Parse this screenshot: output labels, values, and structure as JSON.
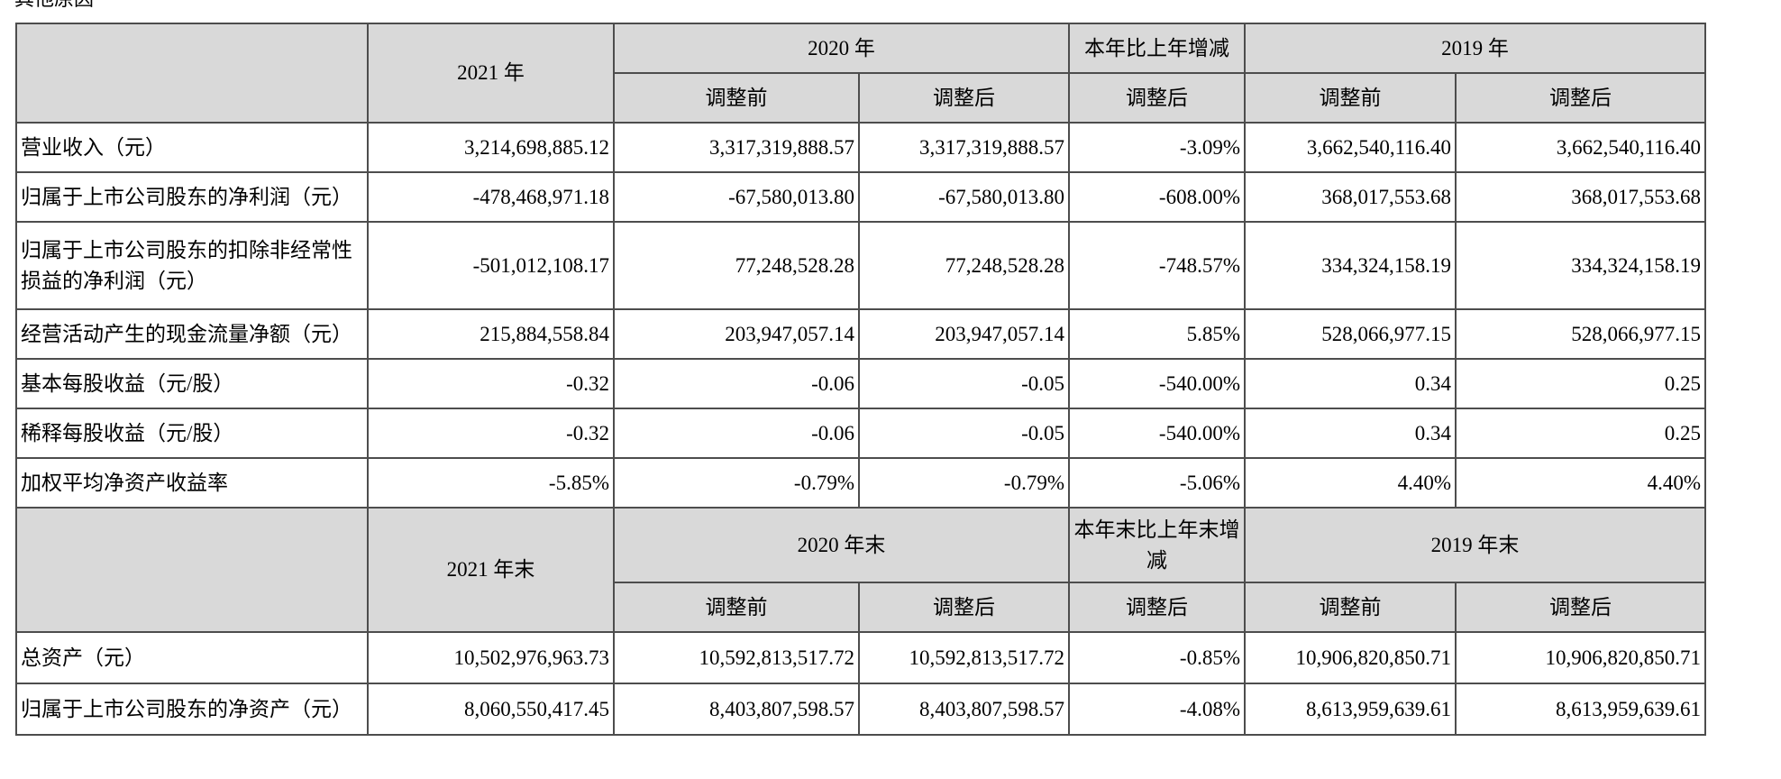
{
  "cut_heading": "其他原因",
  "top_header": {
    "col_2021": "2021 年",
    "col_2020": "2020 年",
    "col_change": "本年比上年增减",
    "col_2019": "2019 年",
    "before_adj": "调整前",
    "after_adj": "调整后"
  },
  "rows": [
    {
      "label": "营业收入（元）",
      "v2021": "3,214,698,885.12",
      "v2020_before": "3,317,319,888.57",
      "v2020_after": "3,317,319,888.57",
      "change": "-3.09%",
      "v2019_before": "3,662,540,116.40",
      "v2019_after": "3,662,540,116.40"
    },
    {
      "label": "归属于上市公司股东的净利润（元）",
      "v2021": "-478,468,971.18",
      "v2020_before": "-67,580,013.80",
      "v2020_after": "-67,580,013.80",
      "change": "-608.00%",
      "v2019_before": "368,017,553.68",
      "v2019_after": "368,017,553.68"
    },
    {
      "label": "归属于上市公司股东的扣除非经常性损益的净利润（元）",
      "v2021": "-501,012,108.17",
      "v2020_before": "77,248,528.28",
      "v2020_after": "77,248,528.28",
      "change": "-748.57%",
      "v2019_before": "334,324,158.19",
      "v2019_after": "334,324,158.19"
    },
    {
      "label": "经营活动产生的现金流量净额（元）",
      "v2021": "215,884,558.84",
      "v2020_before": "203,947,057.14",
      "v2020_after": "203,947,057.14",
      "change": "5.85%",
      "v2019_before": "528,066,977.15",
      "v2019_after": "528,066,977.15"
    },
    {
      "label": "基本每股收益（元/股）",
      "v2021": "-0.32",
      "v2020_before": "-0.06",
      "v2020_after": "-0.05",
      "change": "-540.00%",
      "v2019_before": "0.34",
      "v2019_after": "0.25"
    },
    {
      "label": "稀释每股收益（元/股）",
      "v2021": "-0.32",
      "v2020_before": "-0.06",
      "v2020_after": "-0.05",
      "change": "-540.00%",
      "v2019_before": "0.34",
      "v2019_after": "0.25"
    },
    {
      "label": "加权平均净资产收益率",
      "v2021": "-5.85%",
      "v2020_before": "-0.79%",
      "v2020_after": "-0.79%",
      "change": "-5.06%",
      "v2019_before": "4.40%",
      "v2019_after": "4.40%"
    }
  ],
  "bottom_header": {
    "col_2021": "2021 年末",
    "col_2020": "2020 年末",
    "col_change": "本年末比上年末增减",
    "col_2019": "2019 年末",
    "before_adj": "调整前",
    "after_adj": "调整后"
  },
  "bottom_rows": [
    {
      "label": "总资产（元）",
      "v2021": "10,502,976,963.73",
      "v2020_before": "10,592,813,517.72",
      "v2020_after": "10,592,813,517.72",
      "change": "-0.85%",
      "v2019_before": "10,906,820,850.71",
      "v2019_after": "10,906,820,850.71"
    },
    {
      "label": "归属于上市公司股东的净资产（元）",
      "v2021": "8,060,550,417.45",
      "v2020_before": "8,403,807,598.57",
      "v2020_after": "8,403,807,598.57",
      "change": "-4.08%",
      "v2019_before": "8,613,959,639.61",
      "v2019_after": "8,613,959,639.61"
    }
  ]
}
